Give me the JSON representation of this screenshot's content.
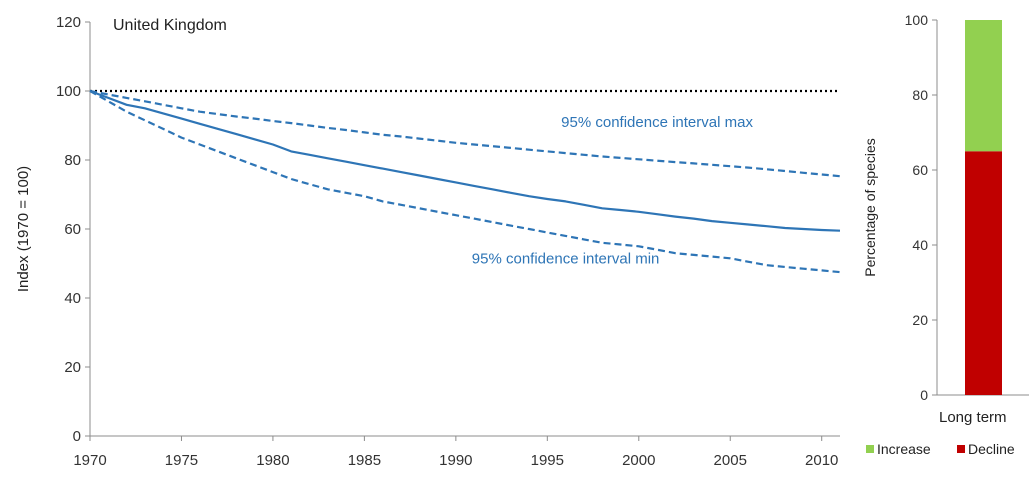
{
  "chart_data": [
    {
      "type": "line",
      "title": "United Kingdom",
      "ylabel": "Index (1970 = 100)",
      "xlabel": "",
      "xlim": [
        1970,
        2011
      ],
      "ylim": [
        0,
        120
      ],
      "xticks": [
        1970,
        1975,
        1980,
        1985,
        1990,
        1995,
        2000,
        2005,
        2010
      ],
      "yticks": [
        0,
        20,
        40,
        60,
        80,
        100,
        120
      ],
      "grid": false,
      "reference_line": {
        "y": 100,
        "style": "dotted",
        "color": "#000000"
      },
      "x": [
        1970,
        1971,
        1972,
        1973,
        1974,
        1975,
        1976,
        1977,
        1978,
        1979,
        1980,
        1981,
        1982,
        1983,
        1984,
        1985,
        1986,
        1987,
        1988,
        1989,
        1990,
        1991,
        1992,
        1993,
        1994,
        1995,
        1996,
        1997,
        1998,
        1999,
        2000,
        2001,
        2002,
        2003,
        2004,
        2005,
        2006,
        2007,
        2008,
        2009,
        2010,
        2011
      ],
      "series": [
        {
          "role": "index",
          "style": "solid",
          "color": "#2e75b6",
          "values": [
            100,
            98,
            96,
            95,
            93.5,
            92,
            90.5,
            89,
            87.5,
            86,
            84.5,
            82.5,
            81.5,
            80.5,
            79.5,
            78.5,
            77.5,
            76.5,
            75.5,
            74.5,
            73.5,
            72.5,
            71.5,
            70.5,
            69.5,
            68.7,
            68,
            67,
            66,
            65.5,
            65,
            64.3,
            63.6,
            63,
            62.3,
            61.8,
            61.3,
            60.8,
            60.3,
            60,
            59.7,
            59.5
          ]
        },
        {
          "role": "upper",
          "name": "95% confidence interval max",
          "style": "dashed",
          "color": "#2e75b6",
          "values": [
            100,
            99,
            98,
            97,
            96,
            95,
            94,
            93.3,
            92.6,
            92,
            91.3,
            90.7,
            90,
            89.3,
            88.7,
            88,
            87.3,
            86.8,
            86.2,
            85.6,
            85,
            84.5,
            84,
            83.5,
            83,
            82.5,
            82,
            81.5,
            81,
            80.6,
            80.2,
            79.8,
            79.4,
            79,
            78.6,
            78.2,
            77.8,
            77.3,
            76.8,
            76.3,
            75.8,
            75.3
          ]
        },
        {
          "role": "lower",
          "name": "95% confidence interval min",
          "style": "dashed",
          "color": "#2e75b6",
          "values": [
            100,
            97,
            94,
            91.5,
            89,
            86.5,
            84.5,
            82.5,
            80.5,
            78.5,
            76.5,
            74.5,
            73,
            71.5,
            70.5,
            69.5,
            68,
            67,
            66,
            65,
            64,
            63,
            62,
            61,
            60,
            59,
            58,
            57,
            56,
            55.5,
            55,
            54,
            53,
            52.5,
            52,
            51.5,
            50.5,
            49.5,
            49,
            48.5,
            48,
            47.5
          ]
        }
      ],
      "annotations": [
        {
          "text": "95% confidence interval max",
          "x": 2001,
          "y": 89.5
        },
        {
          "text": "95% confidence interval min",
          "x": 1996,
          "y": 50
        }
      ]
    },
    {
      "type": "bar",
      "stacked": true,
      "categories": [
        "Long term"
      ],
      "ylabel": "Percentage of species",
      "ylim": [
        0,
        100
      ],
      "yticks": [
        0,
        20,
        40,
        60,
        80,
        100
      ],
      "series": [
        {
          "name": "Decline",
          "color": "#c00000",
          "values": [
            65
          ]
        },
        {
          "name": "Increase",
          "color": "#92d050",
          "values": [
            35
          ]
        }
      ],
      "legend": "bottom"
    }
  ]
}
